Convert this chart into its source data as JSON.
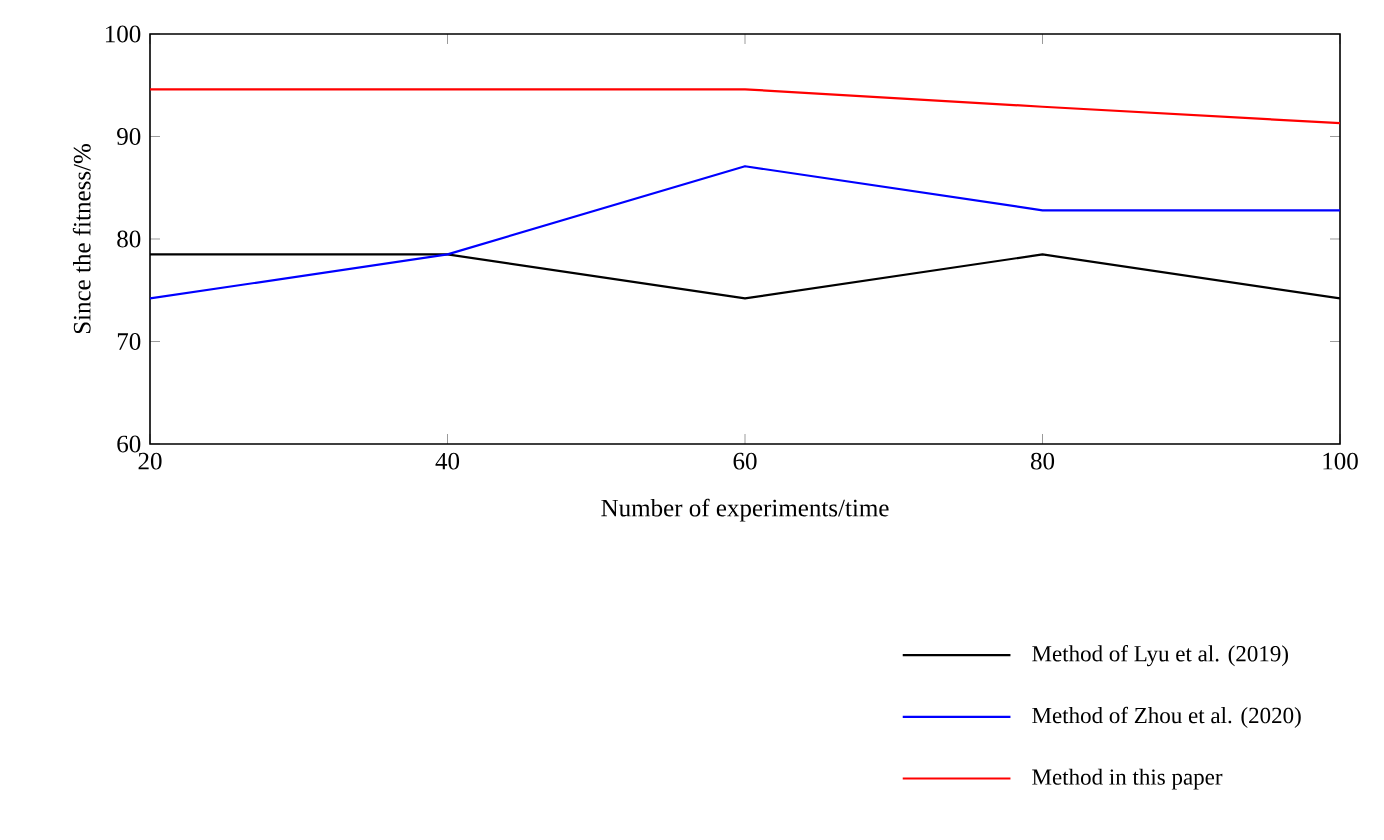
{
  "chart_data": {
    "type": "line",
    "xlabel": "Number of experiments/time",
    "ylabel": "Since the fitness/%",
    "x": [
      20,
      40,
      60,
      80,
      100
    ],
    "series": [
      {
        "name": "Method of Lyu et al. (2019)",
        "color": "#000000",
        "values": [
          78.5,
          78.5,
          74.2,
          78.5,
          74.2
        ]
      },
      {
        "name": "Method of Zhou et al. (2020)",
        "color": "#0000ff",
        "values": [
          74.2,
          78.5,
          87.1,
          82.8,
          82.8
        ]
      },
      {
        "name": "Method in this paper",
        "color": "#ff0000",
        "values": [
          94.6,
          94.6,
          94.6,
          92.9,
          91.3
        ]
      }
    ],
    "xlim": [
      20,
      100
    ],
    "ylim": [
      60,
      100
    ],
    "xticks": [
      20,
      40,
      60,
      80,
      100
    ],
    "yticks": [
      60,
      70,
      80,
      90,
      100
    ],
    "legend": "bottom right",
    "marker": "none",
    "line_style": "solid",
    "grid": false
  }
}
